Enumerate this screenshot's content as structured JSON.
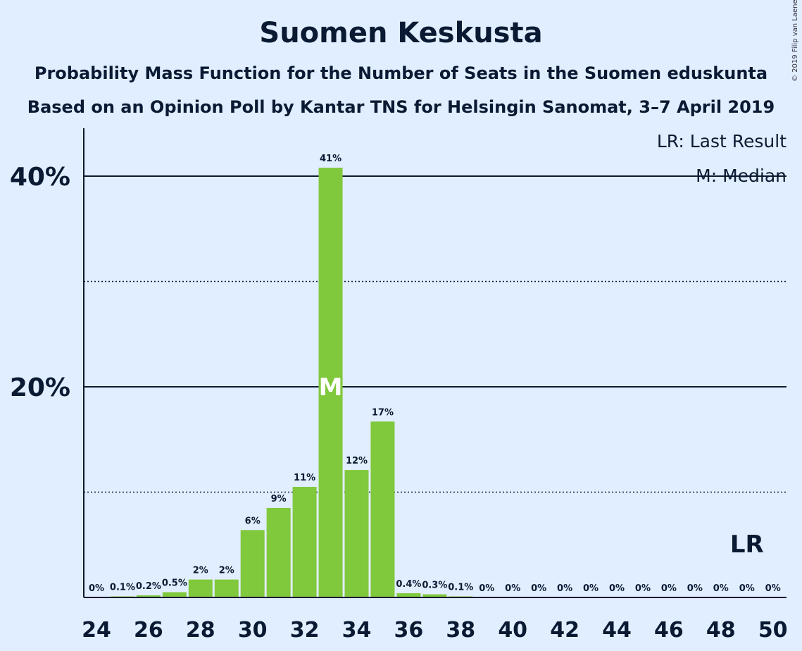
{
  "title": "Suomen Keskusta",
  "subtitle1": "Probability Mass Function for the Number of Seats in the Suomen eduskunta",
  "subtitle2": "Based on an Opinion Poll by Kantar TNS for Helsingin Sanomat, 3–7 April 2019",
  "copyright": "© 2019 Filip van Laenen",
  "legend": {
    "last_result": "LR: Last Result",
    "median": "M: Median"
  },
  "colors": {
    "background": "#e1eeff",
    "bar": "#80c83c",
    "text": "#0b1a33"
  },
  "chart_data": {
    "type": "bar",
    "title": "Suomen Keskusta",
    "xlabel": "",
    "ylabel": "",
    "categories": [
      24,
      25,
      26,
      27,
      28,
      29,
      30,
      31,
      32,
      33,
      34,
      35,
      36,
      37,
      38,
      39,
      40,
      41,
      42,
      43,
      44,
      45,
      46,
      47,
      48,
      49,
      50
    ],
    "values": [
      0,
      0.1,
      0.2,
      0.5,
      1.7,
      1.7,
      6.4,
      8.5,
      10.5,
      40.8,
      12.1,
      16.7,
      0.4,
      0.3,
      0.1,
      0,
      0,
      0,
      0,
      0,
      0,
      0,
      0,
      0,
      0,
      0,
      0
    ],
    "labels": [
      "0%",
      "0.1%",
      "0.2%",
      "0.5%",
      "2%",
      "2%",
      "6%",
      "9%",
      "11%",
      "41%",
      "12%",
      "17%",
      "0.4%",
      "0.3%",
      "0.1%",
      "0%",
      "0%",
      "0%",
      "0%",
      "0%",
      "0%",
      "0%",
      "0%",
      "0%",
      "0%",
      "0%",
      "0%"
    ],
    "x_tick_labels": [
      "24",
      "26",
      "28",
      "30",
      "32",
      "34",
      "36",
      "38",
      "40",
      "42",
      "44",
      "46",
      "48",
      "50"
    ],
    "y_tick_labels": [
      {
        "value": 20,
        "label": "20%"
      },
      {
        "value": 40,
        "label": "40%"
      }
    ],
    "minor_gridlines": [
      10,
      30
    ],
    "ylim": [
      0,
      44.5
    ],
    "median": {
      "seat": 33,
      "label": "M"
    },
    "last_result": {
      "seat": 49,
      "label": "LR"
    }
  }
}
